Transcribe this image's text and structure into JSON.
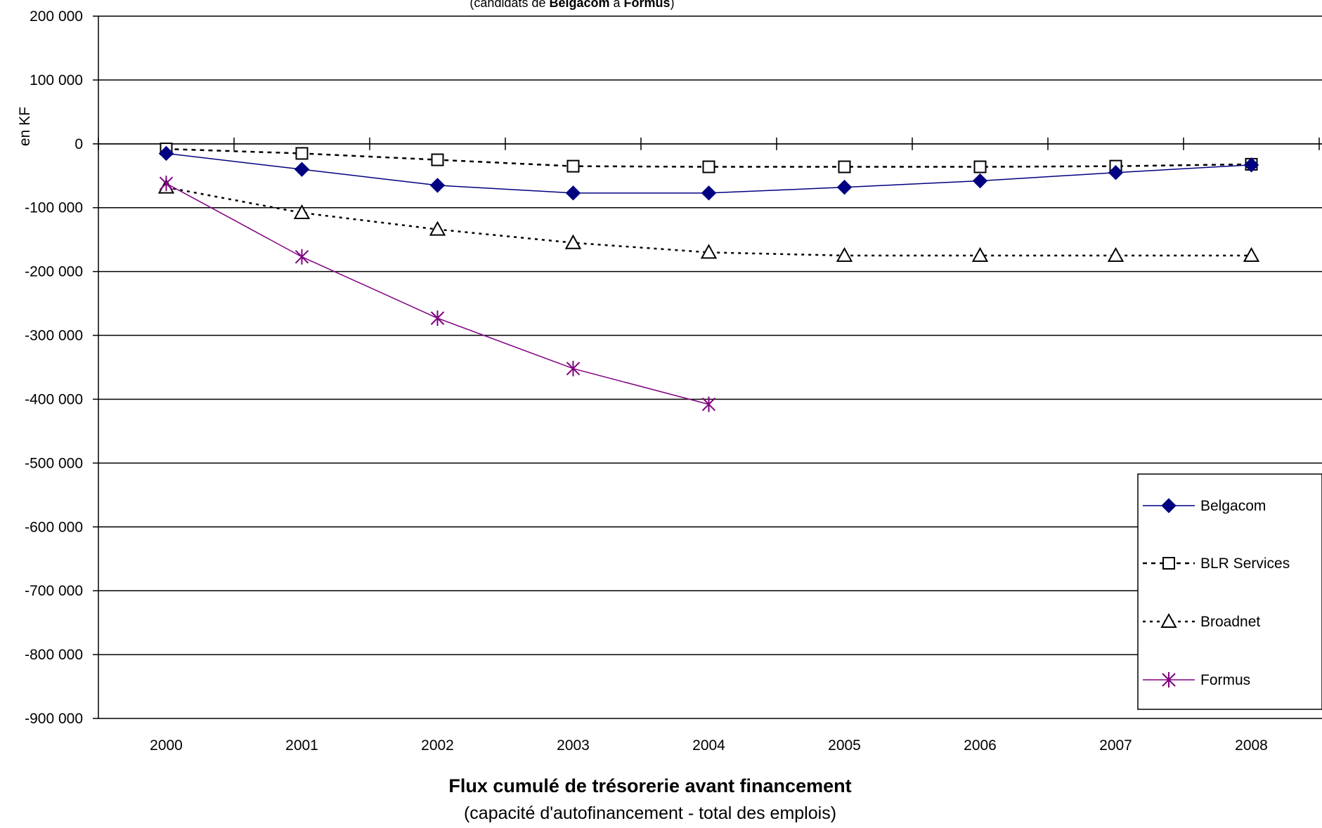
{
  "chart_data": {
    "type": "line",
    "title": "Flux cumulé de trésorerie avant financement",
    "subtitle": "(capacité d'autofinancement - total des emplois)",
    "top_note": {
      "prefix": "(candidats de ",
      "first": "Belgacom",
      "middle": " à ",
      "last": "Formus",
      "suffix": ")"
    },
    "xlabel": "",
    "ylabel": "en KF",
    "categories": [
      "2000",
      "2001",
      "2002",
      "2003",
      "2004",
      "2005",
      "2006",
      "2007",
      "2008"
    ],
    "ylim": [
      -900000,
      200000
    ],
    "yticks": [
      200000,
      100000,
      0,
      -100000,
      -200000,
      -300000,
      -400000,
      -500000,
      -600000,
      -700000,
      -800000,
      -900000
    ],
    "ytick_labels": [
      "200 000",
      "100 000",
      "0",
      "-100 000",
      "-200 000",
      "-300 000",
      "-400 000",
      "-500 000",
      "-600 000",
      "-700 000",
      "-800 000",
      "-900 000"
    ],
    "grid": true,
    "legend_position": "bottom-right",
    "series": [
      {
        "name": "Belgacom",
        "values": [
          -15000,
          -40000,
          -65000,
          -77000,
          -77000,
          -68000,
          -58000,
          -45000,
          -33000
        ],
        "color": "#000080",
        "line_style": "solid",
        "marker": "diamond-filled"
      },
      {
        "name": "BLR Services",
        "values": [
          -8000,
          -15000,
          -25000,
          -35000,
          -36000,
          -36000,
          -36000,
          -35000,
          -32000
        ],
        "color": "#000000",
        "line_style": "dashed",
        "marker": "square-open"
      },
      {
        "name": "Broadnet",
        "values": [
          -68000,
          -108000,
          -134000,
          -155000,
          -170000,
          -175000,
          -175000,
          -175000,
          -175000
        ],
        "color": "#000000",
        "line_style": "dotted",
        "marker": "triangle-open"
      },
      {
        "name": "Formus",
        "values": [
          -62000,
          -177000,
          -273000,
          -352000,
          -408000,
          null,
          null,
          null,
          null
        ],
        "color": "#800080",
        "line_style": "solid",
        "marker": "asterisk"
      }
    ]
  }
}
